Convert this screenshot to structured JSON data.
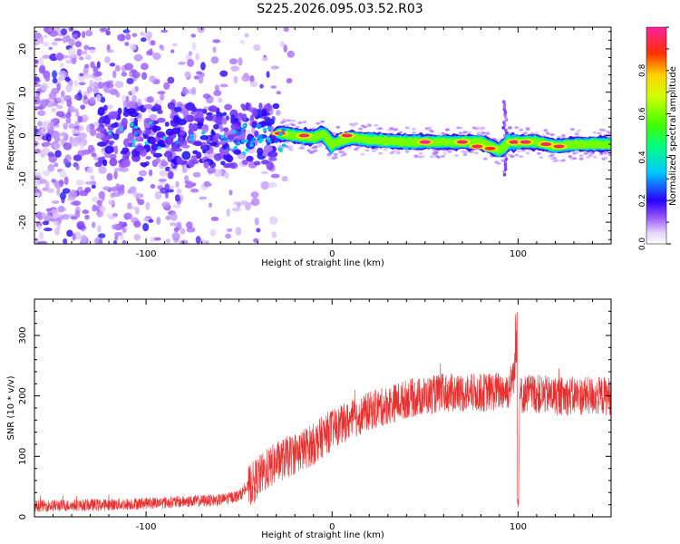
{
  "title": "S225.2026.095.03.52.R03",
  "colors": {
    "snr_line": "#e83030",
    "spectrogram_main": "#6a1fd6",
    "spectrogram_light": "#c9b3f2"
  },
  "chart_data": [
    {
      "id": "spectrogram",
      "type": "heatmap",
      "xlabel": "Height of straight line (km)",
      "ylabel": "Frequency (Hz)",
      "xlim": [
        -160,
        150
      ],
      "ylim": [
        -25,
        25
      ],
      "xticks": [
        -100,
        0,
        100
      ],
      "yticks": [
        -20,
        -10,
        0,
        10,
        20
      ],
      "colorbar": {
        "label": "Normalized spectral amplitude",
        "range": [
          0,
          1
        ],
        "ticks": [
          0.0,
          0.2,
          0.4,
          0.6,
          0.8
        ]
      },
      "signal_track": {
        "x": [
          -28,
          -20,
          -10,
          -5,
          0,
          10,
          20,
          40,
          60,
          80,
          90,
          95,
          100,
          110,
          120,
          130,
          150
        ],
        "freq": [
          0.5,
          0.0,
          -0.5,
          0.5,
          -2.0,
          -0.5,
          -1.0,
          -1.5,
          -1.5,
          -1.5,
          -3.5,
          -1.5,
          -1.5,
          -1.5,
          -2.5,
          -2.0,
          -2.0
        ]
      },
      "hotspots": [
        {
          "x": -28,
          "freq": 0.5,
          "amp": 0.95
        },
        {
          "x": -15,
          "freq": 0.0,
          "amp": 0.95
        },
        {
          "x": 8,
          "freq": 0.0,
          "amp": 0.95
        },
        {
          "x": 50,
          "freq": -1.5,
          "amp": 1.0
        },
        {
          "x": 70,
          "freq": -1.5,
          "amp": 0.95
        },
        {
          "x": 78,
          "freq": -2.5,
          "amp": 0.95
        },
        {
          "x": 85,
          "freq": -3.0,
          "amp": 0.9
        },
        {
          "x": 98,
          "freq": -1.5,
          "amp": 0.95
        },
        {
          "x": 104,
          "freq": -1.5,
          "amp": 0.95
        },
        {
          "x": 115,
          "freq": -2.0,
          "amp": 0.95
        },
        {
          "x": 122,
          "freq": -2.5,
          "amp": 0.95
        }
      ]
    },
    {
      "id": "snr",
      "type": "line",
      "xlabel": "Height of straight line (km)",
      "ylabel": "SNR (10 * v/v)",
      "xlim": [
        -160,
        150
      ],
      "ylim": [
        0,
        360
      ],
      "xticks": [
        -100,
        0,
        100
      ],
      "yticks": [
        0,
        100,
        200,
        300
      ],
      "envelope": {
        "x": [
          -160,
          -120,
          -80,
          -60,
          -50,
          -40,
          -30,
          -20,
          -10,
          0,
          10,
          20,
          30,
          40,
          60,
          80,
          95,
          99,
          100,
          101,
          105,
          120,
          150
        ],
        "y": [
          18,
          20,
          25,
          28,
          35,
          65,
          90,
          105,
          120,
          145,
          160,
          175,
          185,
          195,
          205,
          205,
          210,
          250,
          20,
          200,
          205,
          200,
          200
        ]
      },
      "noise_amplitude": 18
    }
  ]
}
